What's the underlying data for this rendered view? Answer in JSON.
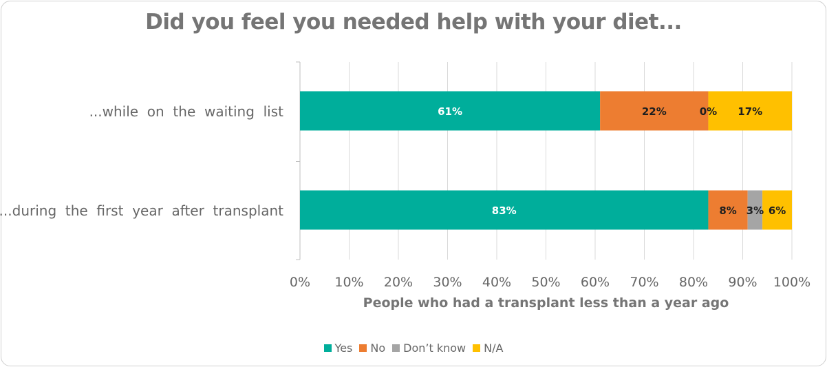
{
  "chart_data": {
    "type": "bar",
    "orientation": "horizontal",
    "stacked": true,
    "title": "Did you feel you needed help with your diet...",
    "xlabel": "People who had a transplant less than a year ago",
    "ylabel": "",
    "xlim": [
      0,
      100
    ],
    "x_ticks": [
      "0%",
      "10%",
      "20%",
      "30%",
      "40%",
      "50%",
      "60%",
      "70%",
      "80%",
      "90%",
      "100%"
    ],
    "categories": [
      "...while  on  the  waiting  list",
      "...during  the  first  year  after  transplant"
    ],
    "series": [
      {
        "name": "Yes",
        "color": "#00ae9b",
        "label_color": "#ffffff",
        "values": [
          61,
          83
        ],
        "labels": [
          "61%",
          "83%"
        ]
      },
      {
        "name": "No",
        "color": "#ed7d31",
        "label_color": "#1f1f1f",
        "values": [
          22,
          8
        ],
        "labels": [
          "22%",
          "8%"
        ]
      },
      {
        "name": "Don’t know",
        "color": "#a5a5a5",
        "label_color": "#1f1f1f",
        "values": [
          0,
          3
        ],
        "labels": [
          "0%",
          "3%"
        ]
      },
      {
        "name": "N/A",
        "color": "#ffc000",
        "label_color": "#1f1f1f",
        "values": [
          17,
          6
        ],
        "labels": [
          "17%",
          "6%"
        ]
      }
    ],
    "grid": true,
    "legend_position": "bottom"
  }
}
